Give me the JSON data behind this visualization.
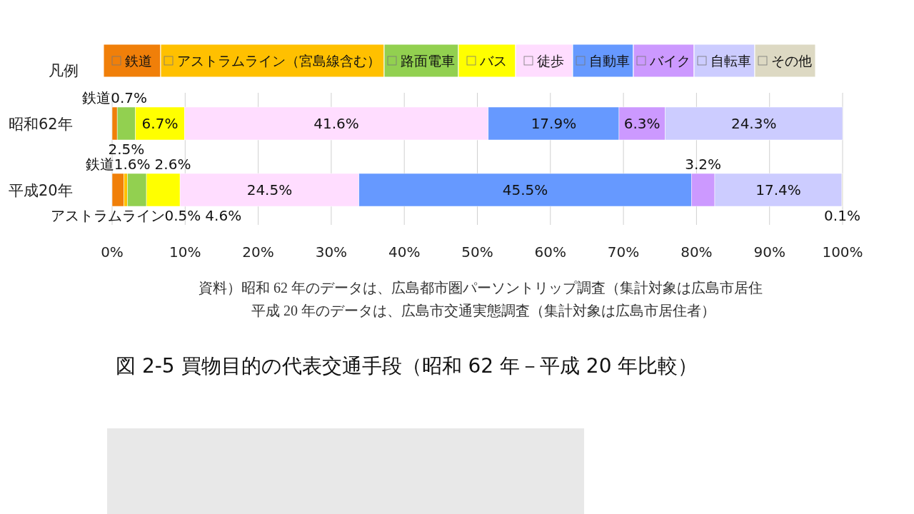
{
  "chart_data": {
    "type": "bar",
    "orientation": "horizontal",
    "stacked": true,
    "title": "図 2-5  買物目的の代表交通手段（昭和 62 年－平成 20 年比較）",
    "legend_title": "凡例",
    "legend": "top",
    "grid": "x",
    "categories": [
      "昭和62年",
      "平成20年"
    ],
    "series": [
      {
        "name": "鉄道",
        "color": "#f07f09",
        "values": [
          0.7,
          1.6
        ],
        "value_labels": [
          "鉄道0.7%",
          "鉄道1.6%"
        ]
      },
      {
        "name": "アストラムライン（宮島線含む）",
        "color": "#ffc000",
        "values": [
          null,
          0.5
        ],
        "value_labels": [
          null,
          "アストラムライン0.5%"
        ]
      },
      {
        "name": "路面電車",
        "color": "#92d050",
        "values": [
          2.5,
          2.6
        ],
        "value_labels": [
          "2.5%",
          "2.6%"
        ]
      },
      {
        "name": "バス",
        "color": "#ffff00",
        "values": [
          6.7,
          4.6
        ],
        "value_labels": [
          "6.7%",
          "4.6%"
        ]
      },
      {
        "name": "徒歩",
        "color": "#ffddff",
        "values": [
          41.6,
          24.5
        ],
        "value_labels": [
          "41.6%",
          "24.5%"
        ]
      },
      {
        "name": "自動車",
        "color": "#6699ff",
        "values": [
          17.9,
          45.5
        ],
        "value_labels": [
          "17.9%",
          "45.5%"
        ]
      },
      {
        "name": "バイク",
        "color": "#cc99ff",
        "values": [
          6.3,
          3.2
        ],
        "value_labels": [
          "6.3%",
          "3.2%"
        ]
      },
      {
        "name": "自転車",
        "color": "#ccccff",
        "values": [
          24.3,
          17.4
        ],
        "value_labels": [
          "24.3%",
          "17.4%"
        ]
      },
      {
        "name": "その他",
        "color": "#ddd9c3",
        "values": [
          null,
          0.1
        ],
        "value_labels": [
          null,
          "0.1%"
        ]
      }
    ],
    "xlim": [
      0,
      100
    ],
    "xticks": [
      {
        "value": 0,
        "label": "0%"
      },
      {
        "value": 10,
        "label": "10%"
      },
      {
        "value": 20,
        "label": "20%"
      },
      {
        "value": 30,
        "label": "30%"
      },
      {
        "value": 40,
        "label": "40%"
      },
      {
        "value": 50,
        "label": "50%"
      },
      {
        "value": 60,
        "label": "60%"
      },
      {
        "value": 70,
        "label": "70%"
      },
      {
        "value": 80,
        "label": "80%"
      },
      {
        "value": 90,
        "label": "90%"
      },
      {
        "value": 100,
        "label": "100%"
      }
    ],
    "annotations": [
      "資料）昭和 62 年のデータは、広島都市圏パーソントリップ調査（集計対象は広島市居住",
      "平成 20 年のデータは、広島市交通実態調査（集計対象は広島市居住者）"
    ]
  }
}
